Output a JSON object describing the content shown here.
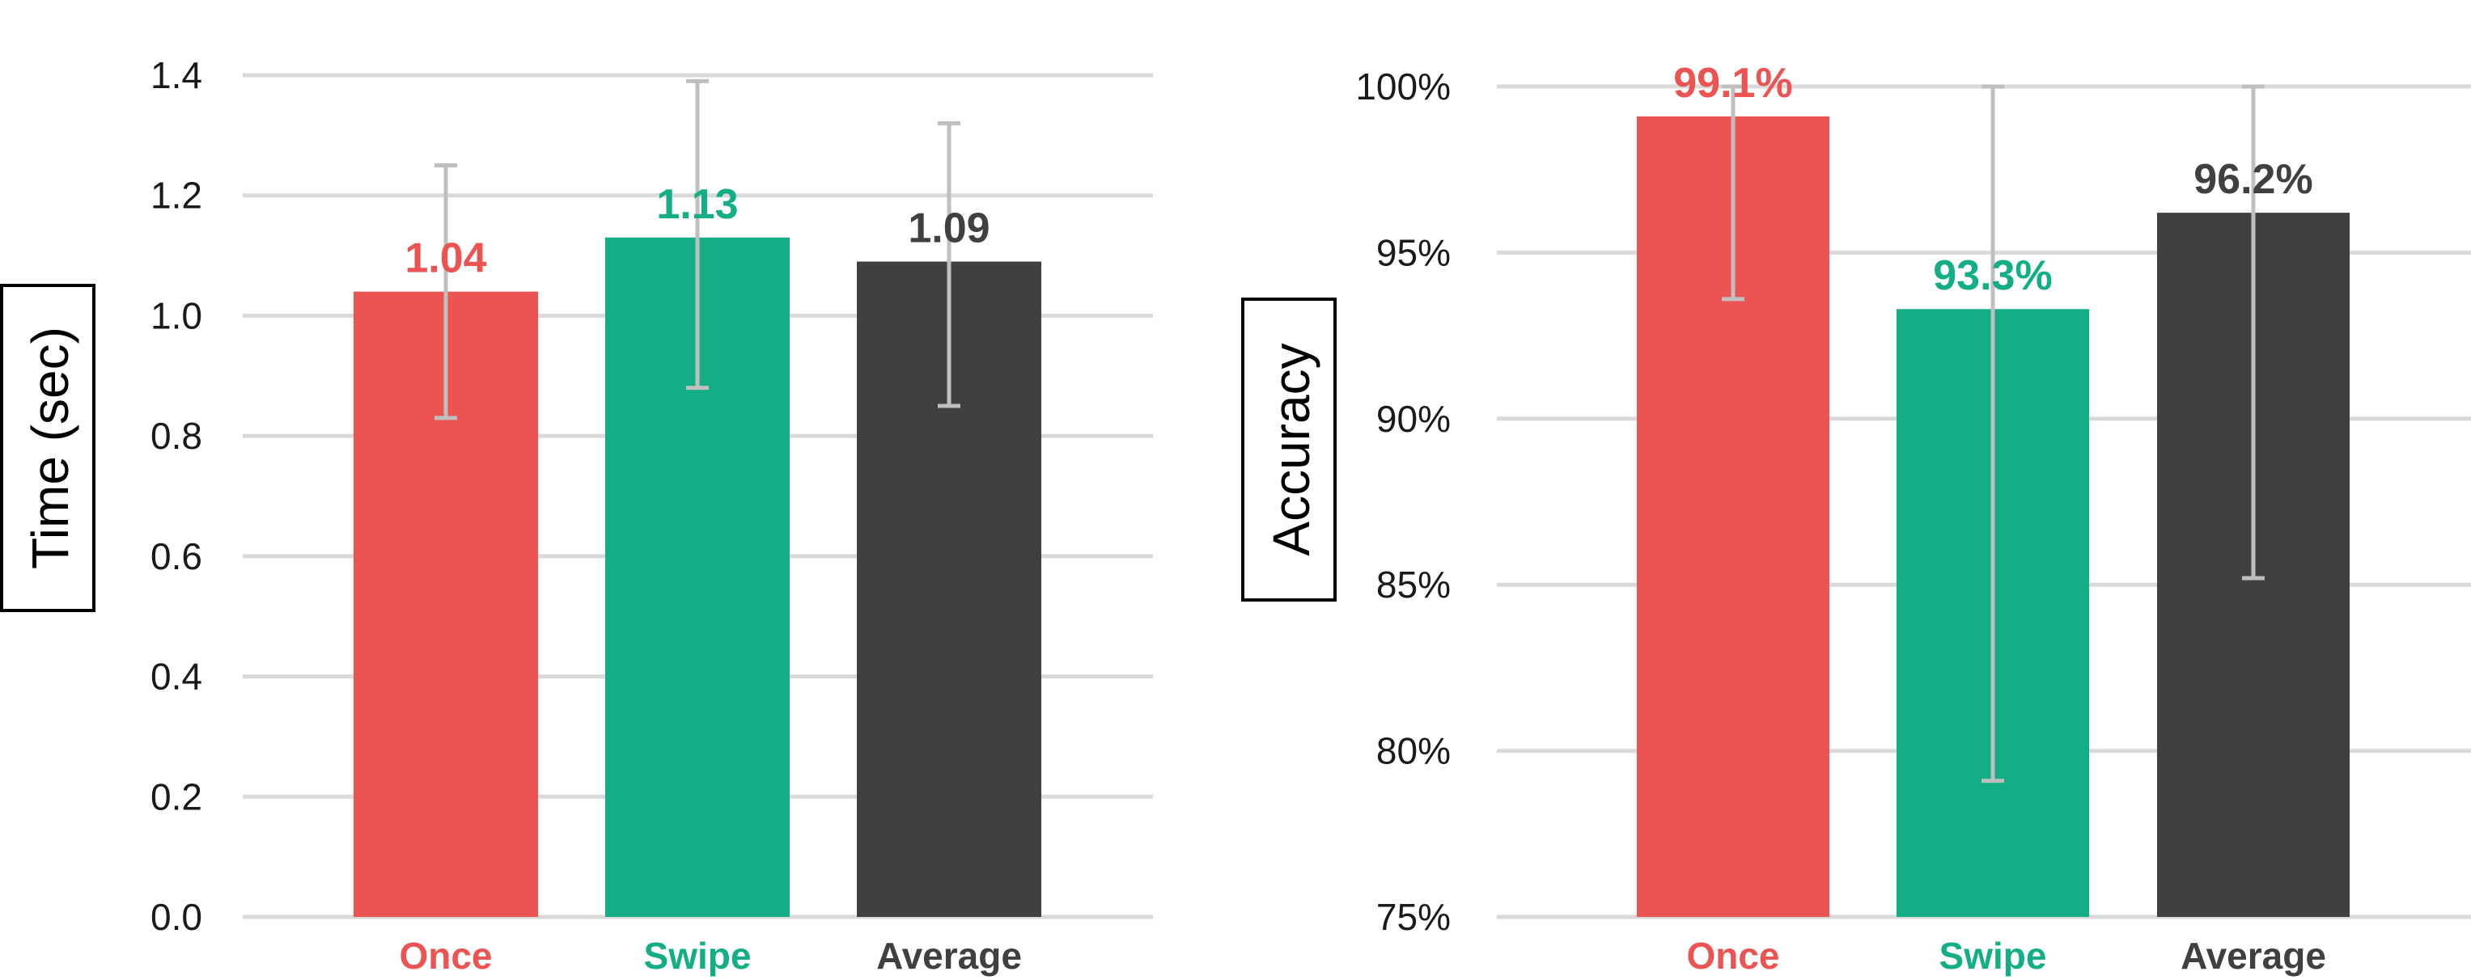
{
  "colors": {
    "once": "#ec5353",
    "swipe": "#13ae85",
    "average": "#404040",
    "grid": "#d9d9d9",
    "errorbar": "#bfbfbf"
  },
  "chart_data": [
    {
      "type": "bar",
      "ylabel": "Time (sec)",
      "categories": [
        "Once",
        "Swipe",
        "Average"
      ],
      "values": [
        1.04,
        1.13,
        1.09
      ],
      "value_labels": [
        "1.04",
        "1.13",
        "1.09"
      ],
      "error_low": [
        0.83,
        0.88,
        0.85
      ],
      "error_high": [
        1.25,
        1.39,
        1.32
      ],
      "ylim": [
        0,
        1.4
      ],
      "yticks": [
        0,
        0.2,
        0.4,
        0.6,
        0.8,
        1.0,
        1.2,
        1.4
      ],
      "ytick_labels": [
        "0.0",
        "0.2",
        "0.4",
        "0.6",
        "0.8",
        "1.0",
        "1.2",
        "1.4"
      ],
      "grid": true
    },
    {
      "type": "bar",
      "ylabel": "Accuracy",
      "categories": [
        "Once",
        "Swipe",
        "Average"
      ],
      "values": [
        99.1,
        93.3,
        96.2
      ],
      "value_labels": [
        "99.1%",
        "93.3%",
        "96.2%"
      ],
      "error_low": [
        93.6,
        79.1,
        85.2
      ],
      "error_high": [
        100,
        100,
        100
      ],
      "ylim": [
        75,
        100
      ],
      "yticks": [
        75,
        80,
        85,
        90,
        95,
        100
      ],
      "ytick_labels": [
        "75%",
        "80%",
        "85%",
        "90%",
        "95%",
        "100%"
      ],
      "grid": true
    }
  ]
}
